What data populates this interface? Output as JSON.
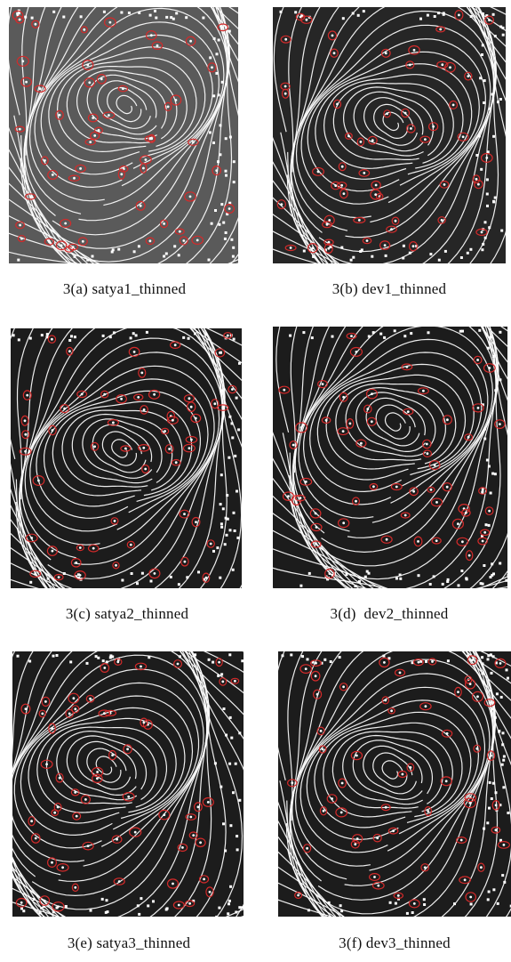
{
  "figure": {
    "panels": [
      {
        "id": "a",
        "caption": "3(a) satya1_thinned",
        "background": "#5a5a5a",
        "seed": 11
      },
      {
        "id": "b",
        "caption": "3(b) dev1_thinned",
        "background": "#262626",
        "seed": 23
      },
      {
        "id": "c",
        "caption": "3(c) satya2_thinned",
        "background": "#1c1c1c",
        "seed": 37
      },
      {
        "id": "d",
        "caption": "3(d)  dev2_thinned",
        "background": "#1c1c1c",
        "seed": 41
      },
      {
        "id": "e",
        "caption": "3(e) satya3_thinned",
        "background": "#1c1c1c",
        "seed": 53
      },
      {
        "id": "f",
        "caption": "3(f) dev3_thinned",
        "background": "#1c1c1c",
        "seed": 67
      }
    ],
    "colors": {
      "ridge": "#ffffff",
      "minutia_marker": "#d42a2a"
    }
  }
}
